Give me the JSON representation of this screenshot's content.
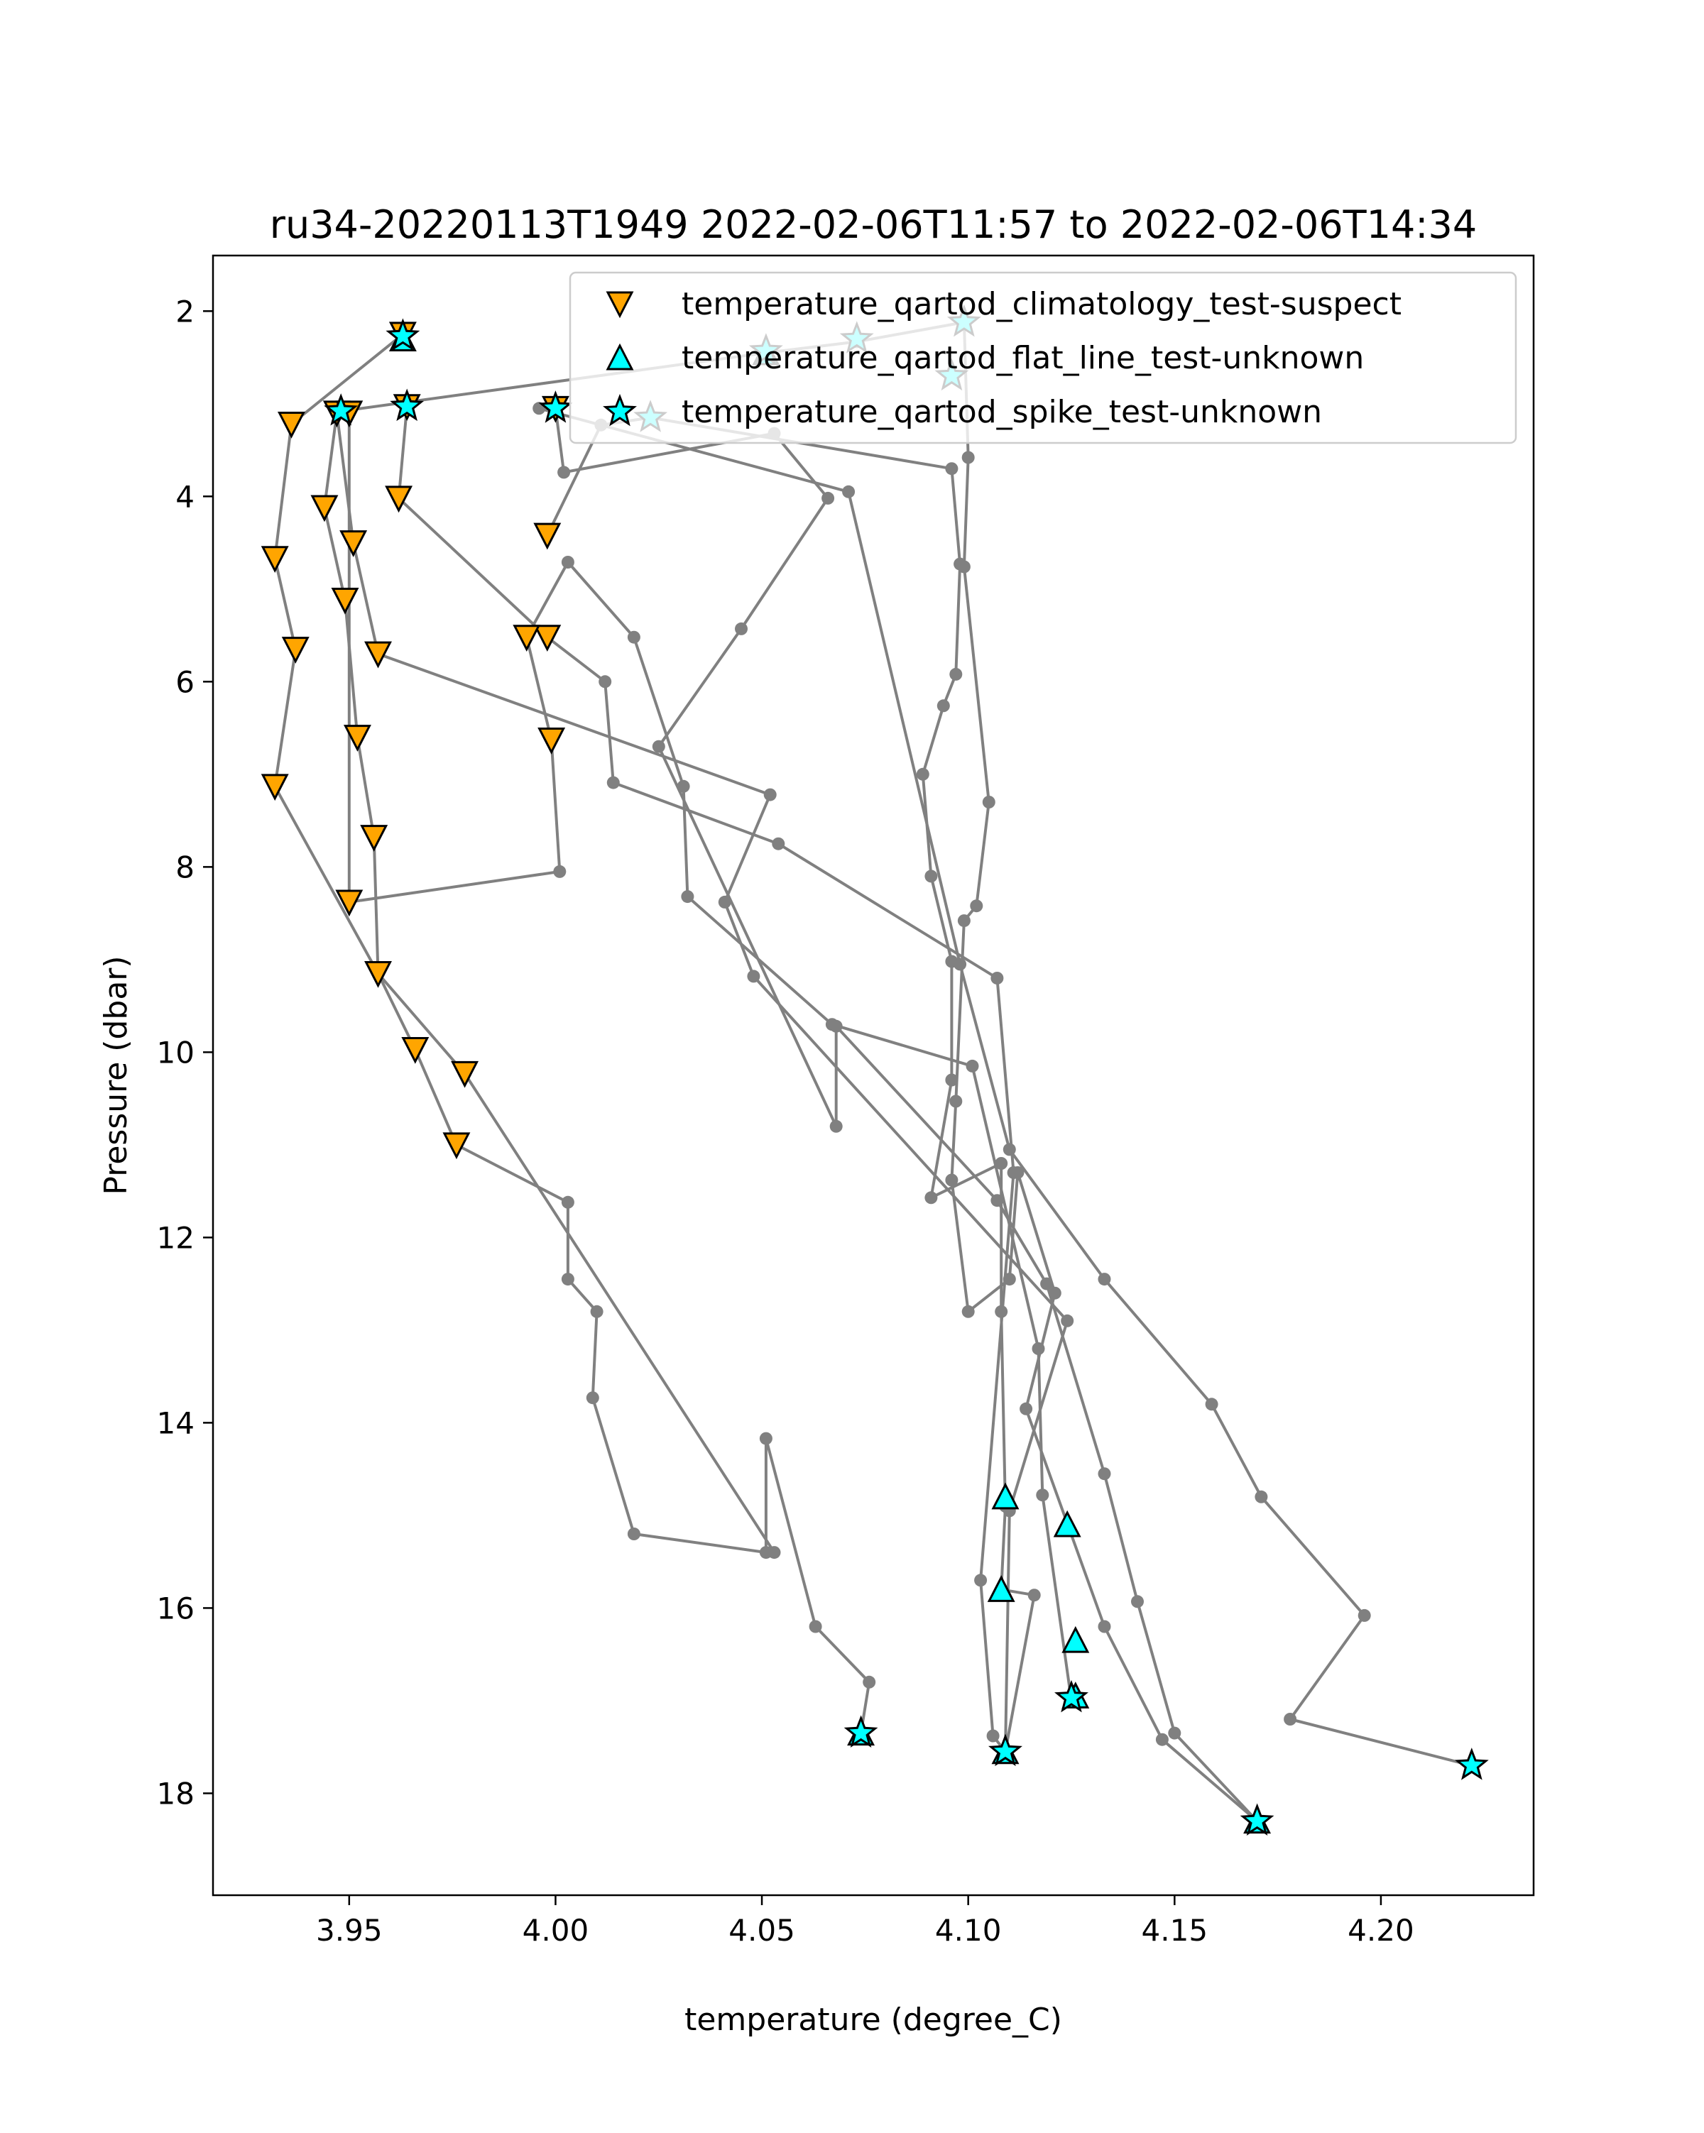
{
  "chart_data": {
    "type": "scatter",
    "title": "ru34-20220113T1949 2022-02-06T11:57 to 2022-02-06T14:34",
    "xlabel": "temperature (degree_C)",
    "ylabel": "Pressure (dbar)",
    "xlim": [
      3.917,
      4.237
    ],
    "ylim": [
      19.1,
      1.4
    ],
    "y_inverted": true,
    "grid": false,
    "x_ticks": [
      3.95,
      4.0,
      4.05,
      4.1,
      4.15,
      4.2
    ],
    "x_tick_labels": [
      "3.95",
      "4.00",
      "4.05",
      "4.10",
      "4.15",
      "4.20"
    ],
    "y_ticks": [
      2,
      4,
      6,
      8,
      10,
      12,
      14,
      16,
      18
    ],
    "y_tick_labels": [
      "2",
      "4",
      "6",
      "8",
      "10",
      "12",
      "14",
      "16",
      "18"
    ],
    "legend_position": "top-right",
    "profile_color": "#808080",
    "profiles": [
      {
        "points": [
          [
            3.963,
            2.25
          ],
          [
            3.936,
            3.22
          ],
          [
            3.932,
            4.67
          ],
          [
            3.937,
            5.65
          ],
          [
            3.932,
            7.13
          ],
          [
            3.957,
            9.15
          ],
          [
            3.966,
            9.97
          ],
          [
            3.976,
            11.0
          ],
          [
            4.003,
            11.62
          ],
          [
            4.003,
            12.45
          ],
          [
            4.01,
            12.8
          ],
          [
            4.009,
            13.73
          ],
          [
            4.019,
            15.2
          ],
          [
            4.051,
            15.4
          ],
          [
            4.051,
            14.17
          ],
          [
            4.063,
            16.2
          ],
          [
            4.076,
            16.8
          ],
          [
            4.074,
            17.35
          ]
        ]
      },
      {
        "points": [
          [
            3.947,
            3.1
          ],
          [
            3.944,
            4.12
          ],
          [
            3.949,
            5.12
          ],
          [
            3.952,
            6.6
          ],
          [
            3.956,
            7.68
          ],
          [
            3.957,
            9.15
          ],
          [
            3.978,
            10.23
          ],
          [
            4.053,
            15.4
          ]
        ]
      },
      {
        "points": [
          [
            3.947,
            3.1
          ],
          [
            3.951,
            4.5
          ],
          [
            3.957,
            5.7
          ],
          [
            4.052,
            7.22
          ],
          [
            4.041,
            8.38
          ],
          [
            4.048,
            9.18
          ],
          [
            4.124,
            12.9
          ],
          [
            4.11,
            14.95
          ],
          [
            4.109,
            17.55
          ]
        ]
      },
      {
        "points": [
          [
            3.95,
            3.1
          ],
          [
            3.95,
            8.38
          ],
          [
            4.001,
            8.05
          ],
          [
            3.999,
            6.63
          ],
          [
            3.993,
            5.52
          ],
          [
            4.003,
            4.71
          ],
          [
            4.019,
            5.52
          ],
          [
            4.031,
            7.13
          ],
          [
            4.032,
            8.32
          ],
          [
            4.067,
            9.7
          ],
          [
            4.101,
            10.15
          ],
          [
            4.117,
            13.2
          ],
          [
            4.118,
            14.78
          ],
          [
            4.125,
            17.0
          ]
        ]
      },
      {
        "points": [
          [
            3.964,
            3.03
          ],
          [
            3.962,
            4.02
          ],
          [
            3.998,
            5.52
          ],
          [
            4.012,
            6.0
          ],
          [
            4.014,
            7.09
          ],
          [
            4.054,
            7.75
          ],
          [
            4.107,
            9.2
          ],
          [
            4.111,
            11.3
          ],
          [
            4.103,
            15.7
          ],
          [
            4.106,
            17.38
          ],
          [
            4.109,
            17.55
          ]
        ]
      },
      {
        "points": [
          [
            4.0,
            3.05
          ],
          [
            4.002,
            3.74
          ],
          [
            4.053,
            3.32
          ],
          [
            4.066,
            4.02
          ],
          [
            4.045,
            5.43
          ],
          [
            4.025,
            6.7
          ],
          [
            4.068,
            10.8
          ],
          [
            4.068,
            9.72
          ],
          [
            4.107,
            11.6
          ],
          [
            4.119,
            12.5
          ],
          [
            4.133,
            14.55
          ],
          [
            4.141,
            15.93
          ],
          [
            4.15,
            17.35
          ],
          [
            4.17,
            18.3
          ]
        ]
      },
      {
        "points": [
          [
            3.998,
            4.42
          ],
          [
            4.011,
            3.23
          ],
          [
            4.023,
            3.15
          ],
          [
            4.096,
            3.7
          ],
          [
            4.098,
            4.73
          ],
          [
            4.097,
            5.92
          ],
          [
            4.094,
            6.26
          ],
          [
            4.089,
            7.0
          ],
          [
            4.091,
            8.1
          ],
          [
            4.096,
            9.02
          ],
          [
            4.096,
            10.3
          ],
          [
            4.091,
            11.57
          ],
          [
            4.108,
            11.2
          ],
          [
            4.108,
            12.8
          ],
          [
            4.109,
            14.9
          ],
          [
            4.108,
            15.8
          ],
          [
            4.116,
            15.86
          ],
          [
            4.109,
            17.55
          ]
        ]
      },
      {
        "points": [
          [
            3.948,
            3.08
          ],
          [
            4.051,
            2.45
          ],
          [
            4.073,
            2.33
          ],
          [
            4.099,
            2.12
          ],
          [
            4.1,
            3.58
          ],
          [
            4.099,
            4.76
          ],
          [
            4.105,
            7.3
          ],
          [
            4.102,
            8.42
          ],
          [
            4.099,
            8.58
          ],
          [
            4.097,
            10.53
          ],
          [
            4.096,
            11.38
          ],
          [
            4.1,
            12.8
          ],
          [
            4.11,
            12.45
          ],
          [
            4.112,
            11.3
          ],
          [
            4.121,
            12.6
          ],
          [
            4.114,
            13.85
          ],
          [
            4.133,
            16.2
          ],
          [
            4.147,
            17.42
          ],
          [
            4.17,
            18.3
          ]
        ]
      },
      {
        "points": [
          [
            3.996,
            3.05
          ],
          [
            4.071,
            3.95
          ],
          [
            4.098,
            9.05
          ],
          [
            4.11,
            11.05
          ],
          [
            4.133,
            12.45
          ],
          [
            4.159,
            13.8
          ],
          [
            4.171,
            14.8
          ],
          [
            4.196,
            16.08
          ],
          [
            4.178,
            17.2
          ],
          [
            4.222,
            17.7
          ]
        ]
      }
    ],
    "series": [
      {
        "name": "temperature_qartod_climatology_test-suspect",
        "marker": "triangle-down",
        "color": "#ffa500",
        "points": [
          [
            3.963,
            2.25
          ],
          [
            3.936,
            3.22
          ],
          [
            3.932,
            4.67
          ],
          [
            3.937,
            5.65
          ],
          [
            3.932,
            7.13
          ],
          [
            3.957,
            9.15
          ],
          [
            3.966,
            9.97
          ],
          [
            3.976,
            11.0
          ],
          [
            3.947,
            3.1
          ],
          [
            3.944,
            4.12
          ],
          [
            3.949,
            5.12
          ],
          [
            3.952,
            6.6
          ],
          [
            3.956,
            7.68
          ],
          [
            3.978,
            10.23
          ],
          [
            3.951,
            4.5
          ],
          [
            3.957,
            5.7
          ],
          [
            3.95,
            3.1
          ],
          [
            3.95,
            8.38
          ],
          [
            3.964,
            3.03
          ],
          [
            3.962,
            4.02
          ],
          [
            3.998,
            5.52
          ],
          [
            3.993,
            5.52
          ],
          [
            3.999,
            6.63
          ],
          [
            4.0,
            3.05
          ],
          [
            3.998,
            4.42
          ]
        ]
      },
      {
        "name": "temperature_qartod_flat_line_test-unknown",
        "marker": "triangle-up",
        "color": "#00ffff",
        "points": [
          [
            3.963,
            2.3
          ],
          [
            4.051,
            2.45
          ],
          [
            4.109,
            14.8
          ],
          [
            4.124,
            15.1
          ],
          [
            4.108,
            15.8
          ],
          [
            4.126,
            16.35
          ],
          [
            4.126,
            16.95
          ],
          [
            4.109,
            17.55
          ],
          [
            4.074,
            17.35
          ],
          [
            4.17,
            18.3
          ]
        ]
      },
      {
        "name": "temperature_qartod_spike_test-unknown",
        "marker": "star",
        "color": "#00ffff",
        "points": [
          [
            3.963,
            2.27
          ],
          [
            3.948,
            3.08
          ],
          [
            3.964,
            3.03
          ],
          [
            4.0,
            3.05
          ],
          [
            4.023,
            3.15
          ],
          [
            4.051,
            2.43
          ],
          [
            4.073,
            2.3
          ],
          [
            4.099,
            2.12
          ],
          [
            4.096,
            2.7
          ],
          [
            4.074,
            17.35
          ],
          [
            4.109,
            17.55
          ],
          [
            4.125,
            16.97
          ],
          [
            4.17,
            18.3
          ],
          [
            4.222,
            17.7
          ]
        ]
      }
    ]
  }
}
